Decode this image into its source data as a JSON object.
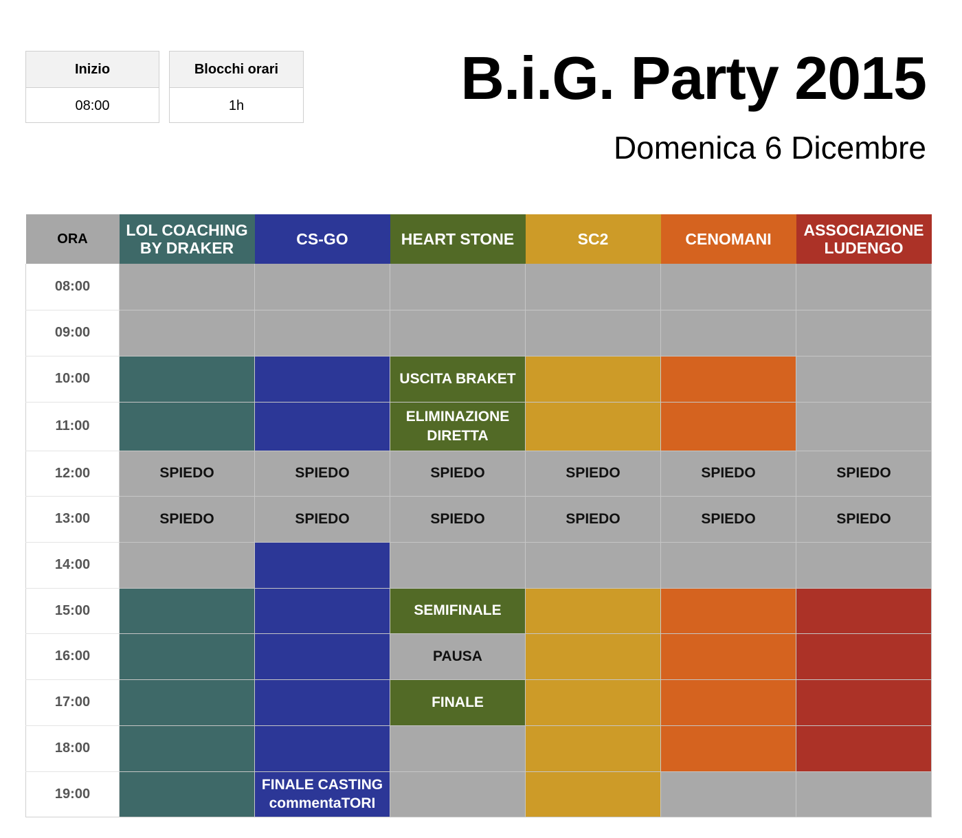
{
  "info_boxes": [
    {
      "label": "Inizio",
      "value": "08:00"
    },
    {
      "label": "Blocchi orari",
      "value": "1h"
    }
  ],
  "title": "B.i.G. Party 2015",
  "subtitle": "Domenica 6 Dicembre",
  "schedule": {
    "time_header": "ORA",
    "empty_color": "#a9a9a9",
    "columns": [
      {
        "id": "lol",
        "lines": [
          "LOL COACHING",
          "BY DRAKER"
        ],
        "color": "#3e6968"
      },
      {
        "id": "csgo",
        "lines": [
          "CS-GO"
        ],
        "color": "#2c3797"
      },
      {
        "id": "hs",
        "lines": [
          "HEART STONE"
        ],
        "color": "#526a26"
      },
      {
        "id": "sc2",
        "lines": [
          "SC2"
        ],
        "color": "#cd9b28"
      },
      {
        "id": "cenomani",
        "lines": [
          "CENOMANI"
        ],
        "color": "#d5631f"
      },
      {
        "id": "ludengo",
        "lines": [
          "ASSOCIAZIONE",
          "LUDENGO"
        ],
        "color": "#ac3227"
      }
    ],
    "rows": [
      {
        "time": "08:00",
        "cells": [
          {
            "text": ""
          },
          {
            "text": ""
          },
          {
            "text": ""
          },
          {
            "text": ""
          },
          {
            "text": ""
          },
          {
            "text": ""
          }
        ]
      },
      {
        "time": "09:00",
        "cells": [
          {
            "text": ""
          },
          {
            "text": ""
          },
          {
            "text": ""
          },
          {
            "text": ""
          },
          {
            "text": ""
          },
          {
            "text": ""
          }
        ]
      },
      {
        "time": "10:00",
        "cells": [
          {
            "text": "",
            "active": true
          },
          {
            "text": "",
            "active": true
          },
          {
            "text": "USCITA BRAKET",
            "active": true
          },
          {
            "text": "",
            "active": true
          },
          {
            "text": "",
            "active": true
          },
          {
            "text": ""
          }
        ]
      },
      {
        "time": "11:00",
        "cells": [
          {
            "text": "",
            "active": true
          },
          {
            "text": "",
            "active": true
          },
          {
            "text": "ELIMINAZIONE",
            "text2": "DIRETTA",
            "active": true
          },
          {
            "text": "",
            "active": true
          },
          {
            "text": "",
            "active": true
          },
          {
            "text": ""
          }
        ]
      },
      {
        "time": "12:00",
        "cells": [
          {
            "text": "SPIEDO"
          },
          {
            "text": "SPIEDO"
          },
          {
            "text": "SPIEDO"
          },
          {
            "text": "SPIEDO"
          },
          {
            "text": "SPIEDO"
          },
          {
            "text": "SPIEDO"
          }
        ]
      },
      {
        "time": "13:00",
        "cells": [
          {
            "text": "SPIEDO"
          },
          {
            "text": "SPIEDO"
          },
          {
            "text": "SPIEDO"
          },
          {
            "text": "SPIEDO"
          },
          {
            "text": "SPIEDO"
          },
          {
            "text": "SPIEDO"
          }
        ]
      },
      {
        "time": "14:00",
        "cells": [
          {
            "text": ""
          },
          {
            "text": "",
            "active": true
          },
          {
            "text": ""
          },
          {
            "text": ""
          },
          {
            "text": ""
          },
          {
            "text": ""
          }
        ]
      },
      {
        "time": "15:00",
        "cells": [
          {
            "text": "",
            "active": true
          },
          {
            "text": "",
            "active": true
          },
          {
            "text": "SEMIFINALE",
            "active": true
          },
          {
            "text": "",
            "active": true
          },
          {
            "text": "",
            "active": true
          },
          {
            "text": "",
            "active": true
          }
        ]
      },
      {
        "time": "16:00",
        "cells": [
          {
            "text": "",
            "active": true
          },
          {
            "text": "",
            "active": true
          },
          {
            "text": "PAUSA"
          },
          {
            "text": "",
            "active": true
          },
          {
            "text": "",
            "active": true
          },
          {
            "text": "",
            "active": true
          }
        ]
      },
      {
        "time": "17:00",
        "cells": [
          {
            "text": "",
            "active": true
          },
          {
            "text": "",
            "active": true
          },
          {
            "text": "FINALE",
            "active": true
          },
          {
            "text": "",
            "active": true
          },
          {
            "text": "",
            "active": true
          },
          {
            "text": "",
            "active": true
          }
        ]
      },
      {
        "time": "18:00",
        "cells": [
          {
            "text": "",
            "active": true
          },
          {
            "text": "",
            "active": true
          },
          {
            "text": ""
          },
          {
            "text": "",
            "active": true
          },
          {
            "text": "",
            "active": true
          },
          {
            "text": "",
            "active": true
          }
        ]
      },
      {
        "time": "19:00",
        "cells": [
          {
            "text": "",
            "active": true
          },
          {
            "text": "FINALE CASTING",
            "text2": "commentaTORI",
            "active": true
          },
          {
            "text": ""
          },
          {
            "text": "",
            "active": true
          },
          {
            "text": ""
          },
          {
            "text": ""
          }
        ]
      }
    ]
  }
}
